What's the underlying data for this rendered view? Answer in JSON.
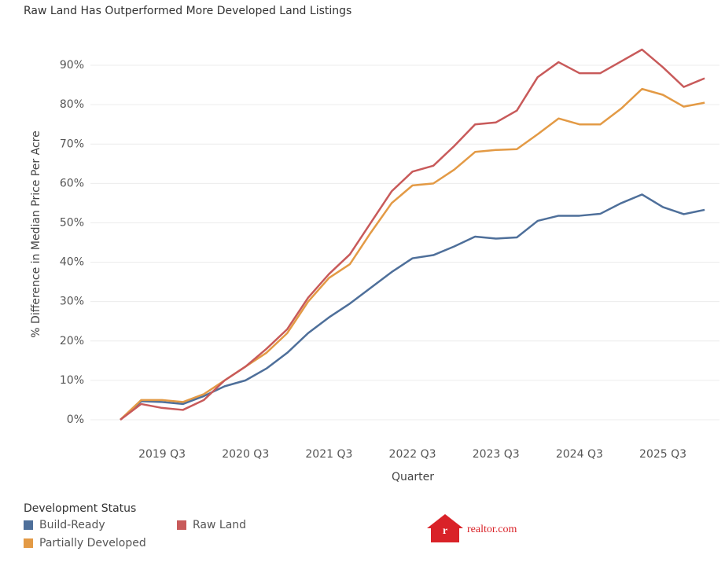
{
  "chart_data": {
    "type": "line",
    "title": "Raw Land Has Outperformed More Developed Land Listings",
    "x_label": "Quarter",
    "y_label": "% Difference in Median Price Per Acre",
    "categories": [
      null,
      null,
      "2019 Q3",
      null,
      null,
      null,
      "2020 Q3",
      null,
      null,
      null,
      "2021 Q3",
      null,
      null,
      null,
      "2022 Q3",
      null,
      null,
      null,
      "2023 Q3",
      null,
      null,
      null,
      "2024 Q3",
      null,
      null,
      null,
      "2025 Q3",
      null,
      null
    ],
    "series": [
      {
        "name": "Build-Ready",
        "color": "#4e6f9a",
        "values": [
          0,
          4.7,
          4.5,
          4,
          6,
          8.5,
          10,
          13,
          17,
          22,
          26,
          29.5,
          33.5,
          37.5,
          41,
          41.8,
          44,
          46.5,
          46,
          46.3,
          50.5,
          51.8,
          51.8,
          52.3,
          55,
          57.2,
          54,
          52.2,
          53.3
        ]
      },
      {
        "name": "Partially Developed",
        "color": "#e39a45",
        "values": [
          0,
          5,
          5,
          4.5,
          6.5,
          10,
          13.5,
          17,
          22,
          30,
          36,
          39.5,
          47.5,
          55,
          59.5,
          60,
          63.5,
          68,
          68.5,
          68.7,
          72.5,
          76.5,
          75,
          75,
          79,
          84,
          82.5,
          79.5,
          80.5
        ]
      },
      {
        "name": "Raw Land",
        "color": "#c85a5a",
        "values": [
          0,
          4,
          3,
          2.5,
          5,
          10,
          13.5,
          18,
          23,
          31,
          37,
          42,
          50,
          58,
          63,
          64.5,
          69.5,
          75,
          75.5,
          78.5,
          87,
          90.8,
          88,
          88,
          91,
          94,
          89.5,
          84.5,
          86.7
        ]
      }
    ],
    "ylim": [
      -4,
      96
    ],
    "yticks": [
      {
        "value": 0,
        "label": "0%"
      },
      {
        "value": 10,
        "label": "10%"
      },
      {
        "value": 20,
        "label": "20%"
      },
      {
        "value": 30,
        "label": "30%"
      },
      {
        "value": 40,
        "label": "40%"
      },
      {
        "value": 50,
        "label": "50%"
      },
      {
        "value": 60,
        "label": "60%"
      },
      {
        "value": 70,
        "label": "70%"
      },
      {
        "value": 80,
        "label": "80%"
      },
      {
        "value": 90,
        "label": "90%"
      }
    ],
    "grid": true,
    "legend_title": "Development Status",
    "legend_position": "bottom-left",
    "logo": "realtor.com"
  }
}
